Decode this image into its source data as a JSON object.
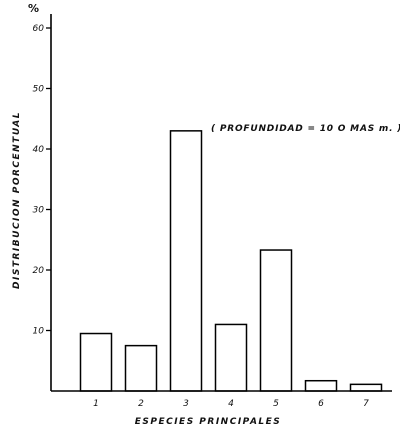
{
  "chart_data": {
    "type": "bar",
    "categories": [
      "1",
      "2",
      "3",
      "4",
      "5",
      "6",
      "7"
    ],
    "values": [
      9.5,
      7.5,
      43,
      11,
      23.3,
      1.7,
      1.1
    ],
    "xlabel": "ESPECIES   PRINCIPALES",
    "ylabel": "DISTRIBUCION    PORCENTUAL",
    "y_unit": "%",
    "ylim": [
      0,
      60
    ],
    "yticks": [
      10,
      20,
      30,
      40,
      50,
      60
    ],
    "annotation": "( PROFUNDIDAD = 10   O MAS m. )",
    "grid": false,
    "legend": "none",
    "bar_color": "#ffffff",
    "line_color": "#000000"
  }
}
